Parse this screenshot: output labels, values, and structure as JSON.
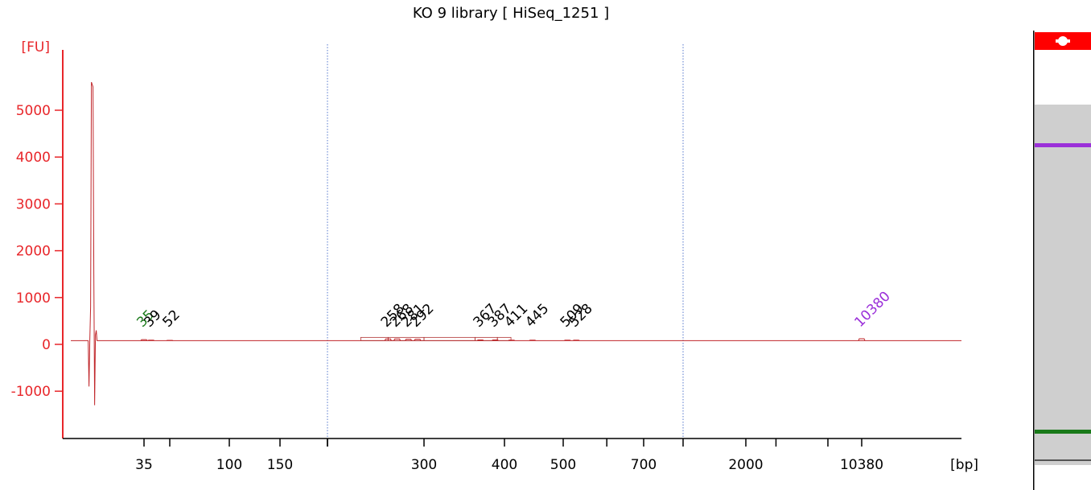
{
  "chart_data": {
    "type": "line",
    "title": "KO 9 library  [ HiSeq_1251 ]",
    "ylabel": "[FU]",
    "xlabel": "[bp]",
    "ylim": [
      -2000,
      6500
    ],
    "y_ticks": [
      -1000,
      0,
      1000,
      2000,
      3000,
      4000,
      5000
    ],
    "x_ticks": [
      "35",
      "100",
      "150",
      "300",
      "400",
      "500",
      "700",
      "2000",
      "10380"
    ],
    "x_minor_ticks": 6,
    "dotted_markers": [
      "200",
      "1000"
    ],
    "baseline_fu": 80,
    "peaks": [
      {
        "label": "35",
        "x": 35,
        "fu": 100,
        "color": "#1a7a1a"
      },
      {
        "label": "39",
        "x": 39,
        "fu": 90,
        "color": "#000000"
      },
      {
        "label": "52",
        "x": 52,
        "fu": 85,
        "color": "#000000"
      },
      {
        "label": "258",
        "x": 258,
        "fu": 115,
        "color": "#000000"
      },
      {
        "label": "268",
        "x": 268,
        "fu": 115,
        "color": "#000000"
      },
      {
        "label": "281",
        "x": 281,
        "fu": 110,
        "color": "#000000"
      },
      {
        "label": "292",
        "x": 292,
        "fu": 110,
        "color": "#000000"
      },
      {
        "label": "367",
        "x": 367,
        "fu": 95,
        "color": "#000000"
      },
      {
        "label": "387",
        "x": 387,
        "fu": 95,
        "color": "#000000"
      },
      {
        "label": "411",
        "x": 411,
        "fu": 90,
        "color": "#000000"
      },
      {
        "label": "445",
        "x": 445,
        "fu": 90,
        "color": "#000000"
      },
      {
        "label": "509",
        "x": 509,
        "fu": 90,
        "color": "#000000"
      },
      {
        "label": "528",
        "x": 528,
        "fu": 90,
        "color": "#000000"
      },
      {
        "label": "10380",
        "x": 10380,
        "fu": 120,
        "color": "#9b30d9"
      }
    ],
    "spike": {
      "x_bp": 20,
      "max_fu": 5600,
      "min_fu": -1300
    }
  },
  "colors": {
    "axis": "#e8262a",
    "trace": "#c0262a",
    "upper_marker": "#9b30d9",
    "lower_marker": "#1a7a1a",
    "gel_background": "#cfcfcf",
    "gel_header": "#ff0000"
  },
  "gel_lane": {
    "bands": [
      {
        "name": "upper-marker-band",
        "color": "#9b30d9"
      },
      {
        "name": "lower-marker-band",
        "color": "#1a7a1a"
      },
      {
        "name": "bottom-band",
        "color": "#555555"
      }
    ]
  }
}
